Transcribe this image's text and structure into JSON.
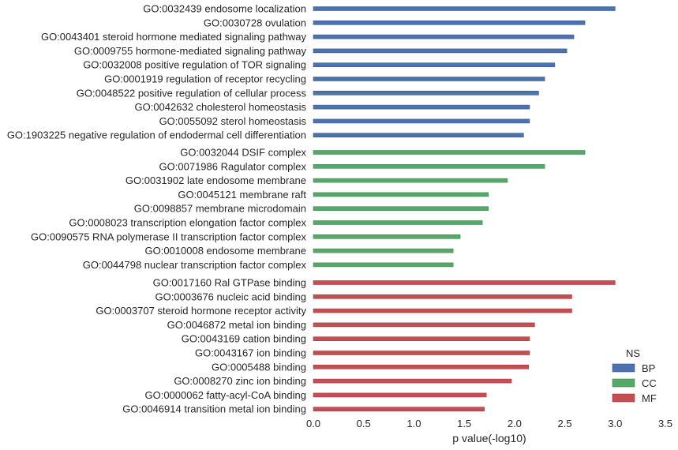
{
  "chart_data": {
    "type": "bar",
    "orientation": "horizontal",
    "xlabel": "p value(-log10)",
    "xlim": [
      0,
      3.5
    ],
    "xticks": [
      "0.0",
      "0.5",
      "1.0",
      "1.5",
      "2.0",
      "2.5",
      "3.0",
      "3.5"
    ],
    "grid": false,
    "legend": {
      "title": "NS",
      "placement": "bottom-right",
      "entries": [
        {
          "name": "BP",
          "color": "#4c72b0"
        },
        {
          "name": "CC",
          "color": "#55a868"
        },
        {
          "name": "MF",
          "color": "#c44e52"
        }
      ]
    },
    "categories": [
      "GO:0032439 endosome localization",
      "GO:0030728 ovulation",
      "GO:0043401 steroid hormone mediated signaling pathway",
      "GO:0009755 hormone-mediated signaling pathway",
      "GO:0032008 positive regulation of TOR signaling",
      "GO:0001919 regulation of receptor recycling",
      "GO:0048522 positive regulation of cellular process",
      "GO:0042632 cholesterol homeostasis",
      "GO:0055092 sterol homeostasis",
      "GO:1903225 negative regulation of endodermal cell differentiation",
      "GO:0032044 DSIF complex",
      "GO:0071986 Ragulator complex",
      "GO:0031902 late endosome membrane",
      "GO:0045121 membrane raft",
      "GO:0098857 membrane microdomain",
      "GO:0008023 transcription elongation factor complex",
      "GO:0090575 RNA polymerase II transcription factor complex",
      "GO:0010008 endosome membrane",
      "GO:0044798 nuclear transcription factor complex",
      "GO:0017160 Ral GTPase binding",
      "GO:0003676 nucleic acid binding",
      "GO:0003707 steroid hormone receptor activity",
      "GO:0046872 metal ion binding",
      "GO:0043169 cation binding",
      "GO:0043167 ion binding",
      "GO:0005488 binding",
      "GO:0008270 zinc ion binding",
      "GO:0000062 fatty-acyl-CoA binding",
      "GO:0046914 transition metal ion binding"
    ],
    "ns": [
      "BP",
      "BP",
      "BP",
      "BP",
      "BP",
      "BP",
      "BP",
      "BP",
      "BP",
      "BP",
      "CC",
      "CC",
      "CC",
      "CC",
      "CC",
      "CC",
      "CC",
      "CC",
      "CC",
      "MF",
      "MF",
      "MF",
      "MF",
      "MF",
      "MF",
      "MF",
      "MF",
      "MF",
      "MF"
    ],
    "values": [
      3.0,
      2.7,
      2.59,
      2.52,
      2.4,
      2.3,
      2.24,
      2.15,
      2.15,
      2.09,
      2.7,
      2.3,
      1.93,
      1.74,
      1.74,
      1.68,
      1.46,
      1.39,
      1.39,
      3.0,
      2.57,
      2.57,
      2.2,
      2.15,
      2.15,
      2.14,
      1.97,
      1.72,
      1.7
    ]
  }
}
